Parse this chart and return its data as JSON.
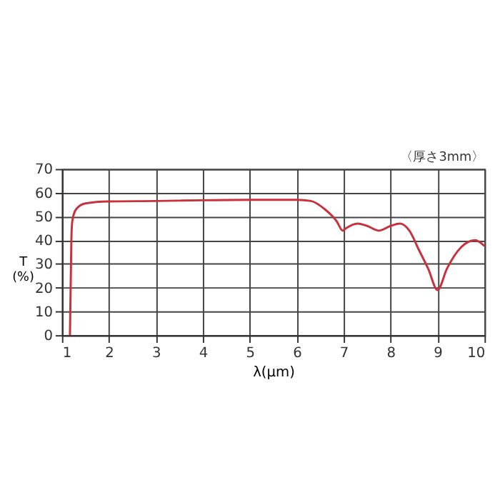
{
  "chart_data": {
    "type": "line",
    "xlabel": "λ(μm)",
    "ylabel": "T\n(%)",
    "annotations": [
      "〈厚さ3mm〉"
    ],
    "x": [
      1.17,
      1.2,
      1.22,
      1.3,
      1.5,
      2,
      3,
      4,
      5,
      6,
      6.3,
      6.6,
      6.85,
      6.98,
      7.05,
      7.3,
      7.5,
      7.75,
      8,
      8.2,
      8.4,
      8.6,
      8.8,
      9,
      9.2,
      9.5,
      9.8,
      10
    ],
    "series": [
      {
        "color": "#c8323c",
        "values": [
          0,
          40,
          48,
          53,
          55.5,
          56.3,
          56.5,
          56.8,
          57,
          57,
          56.5,
          53,
          48,
          44,
          45,
          47,
          46,
          44,
          46,
          47,
          44,
          36,
          28,
          19,
          28,
          37,
          40,
          37.5
        ]
      }
    ],
    "xlim": [
      1,
      10
    ],
    "xticks": [
      1,
      2,
      3,
      4,
      5,
      6,
      7,
      8,
      9,
      10
    ],
    "ylim": [
      0,
      70
    ],
    "yticks": [
      0,
      10,
      20,
      30,
      40,
      50,
      60,
      70
    ],
    "grid": true,
    "marker": "none",
    "line_style": "solid"
  }
}
